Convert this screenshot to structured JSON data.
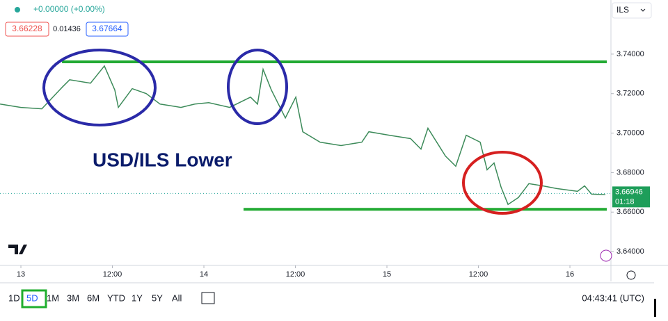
{
  "header": {
    "change": "+0.00000 (+0.00%)",
    "bid": "3.66228",
    "spread": "0.01436",
    "ask": "3.67664",
    "currency": "ILS"
  },
  "chart_data": {
    "type": "line",
    "title": "USD/ILS Lower",
    "x": [
      -2.74,
      0,
      2.74,
      5.48,
      6.39,
      9.13,
      10.95,
      12.32,
      12.78,
      14.6,
      16.43,
      18.25,
      20.99,
      22.81,
      24.64,
      27.38,
      30.11,
      31.03,
      31.76,
      32.85,
      34.68,
      36.05,
      36.96,
      39.24,
      41.98,
      44.71,
      45.63,
      48.36,
      51.1,
      52.47,
      53.38,
      55.67,
      57.03,
      58.4,
      60.23,
      61.14,
      62.05,
      62.97,
      63.88,
      65.25,
      66.62,
      68.44,
      70.27,
      73.0,
      73.92,
      74.83,
      76.65
    ],
    "series": [
      {
        "name": "USD/ILS",
        "color": "#3d8b5a",
        "values": [
          3.7147,
          3.713,
          3.7123,
          3.7235,
          3.727,
          3.7253,
          3.734,
          3.7218,
          3.713,
          3.7225,
          3.72,
          3.7147,
          3.713,
          3.7147,
          3.7154,
          3.713,
          3.7182,
          3.7147,
          3.7323,
          3.7218,
          3.7077,
          3.7182,
          3.7007,
          3.6954,
          3.6937,
          3.6954,
          3.7007,
          3.6989,
          3.6972,
          3.6919,
          3.7025,
          3.6884,
          3.6832,
          3.6989,
          3.6954,
          3.6814,
          3.6849,
          3.6726,
          3.6639,
          3.6674,
          3.6744,
          3.6733,
          3.6719,
          3.6705,
          3.6733,
          3.6691,
          3.6688
        ]
      }
    ],
    "xlim": [
      -2.74,
      77.38
    ],
    "xticks": [
      {
        "value": 0,
        "label": "13"
      },
      {
        "value": 12,
        "label": "12:00"
      },
      {
        "value": 24,
        "label": "14"
      },
      {
        "value": 36,
        "label": "12:00"
      },
      {
        "value": 48,
        "label": "15"
      },
      {
        "value": 60,
        "label": "12:00"
      },
      {
        "value": 72,
        "label": "16"
      }
    ],
    "ylim": [
      3.633,
      3.7674
    ],
    "yticks": [
      {
        "value": 3.64,
        "label": "3.64000"
      },
      {
        "value": 3.66,
        "label": "3.66000"
      },
      {
        "value": 3.68,
        "label": "3.68000"
      },
      {
        "value": 3.7,
        "label": "3.70000"
      },
      {
        "value": 3.72,
        "label": "3.72000"
      },
      {
        "value": 3.74,
        "label": "3.74000"
      }
    ],
    "grid": false,
    "annotation_lines": [
      {
        "color": "#22aa33",
        "from": 5.39,
        "value": 3.7361
      },
      {
        "color": "#22aa33",
        "from": 29.2,
        "value": 3.6614
      }
    ],
    "last_price": 3.66946,
    "countdown": "01:18"
  },
  "toolbar": {
    "ranges": [
      "1D",
      "5D",
      "1M",
      "3M",
      "6M",
      "YTD",
      "1Y",
      "5Y",
      "All"
    ],
    "clock": "04:43:41 (UTC)"
  }
}
